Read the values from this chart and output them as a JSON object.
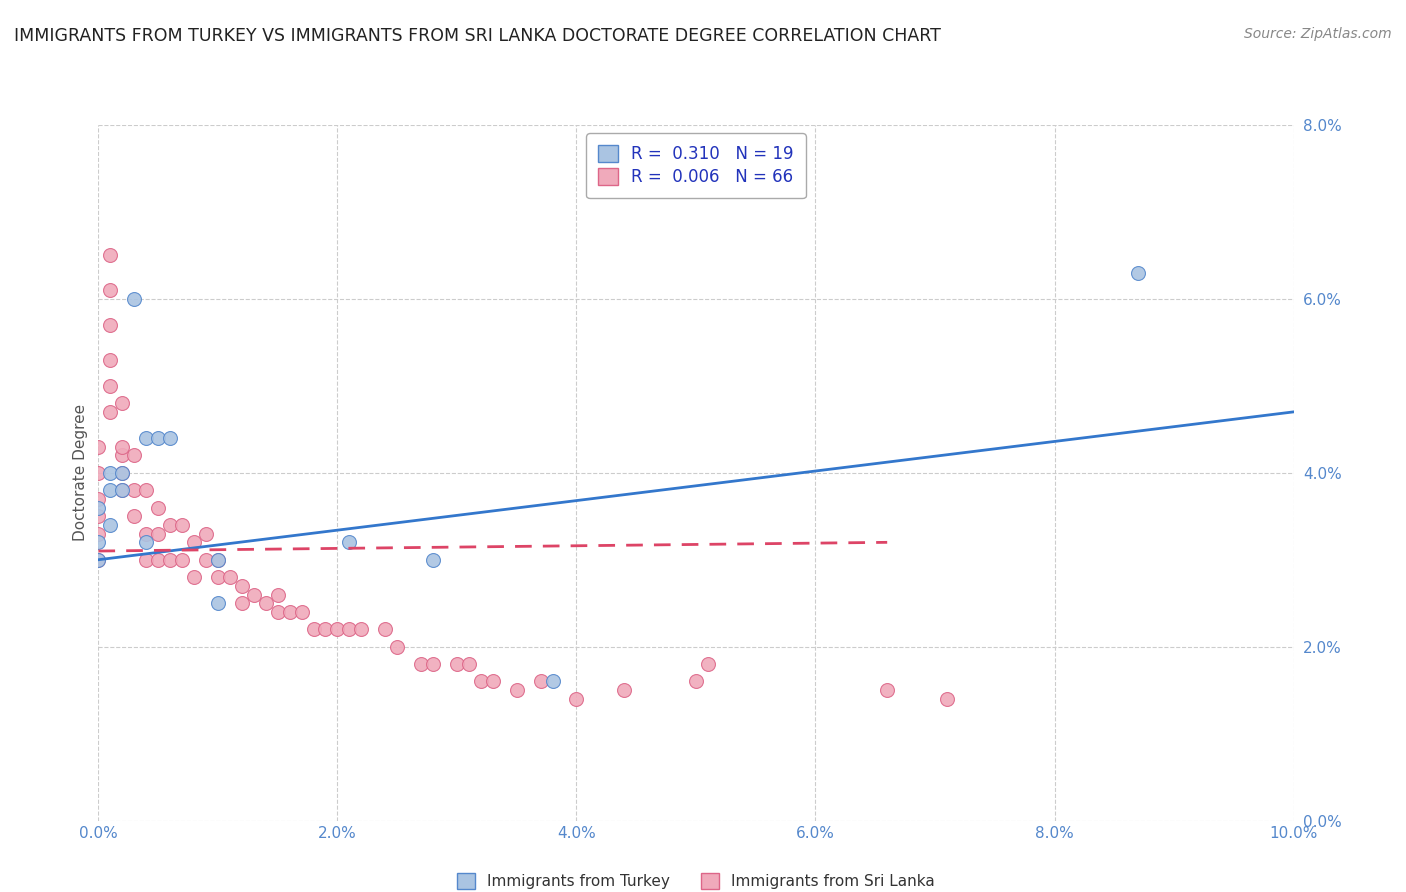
{
  "title": "IMMIGRANTS FROM TURKEY VS IMMIGRANTS FROM SRI LANKA DOCTORATE DEGREE CORRELATION CHART",
  "source": "Source: ZipAtlas.com",
  "ylabel": "Doctorate Degree",
  "xlim": [
    0.0,
    0.1
  ],
  "ylim": [
    0.0,
    0.08
  ],
  "xticks": [
    0.0,
    0.02,
    0.04,
    0.06,
    0.08,
    0.1
  ],
  "yticks": [
    0.0,
    0.02,
    0.04,
    0.06,
    0.08
  ],
  "xtick_labels": [
    "0.0%",
    "2.0%",
    "4.0%",
    "6.0%",
    "8.0%",
    "10.0%"
  ],
  "ytick_labels": [
    "0.0%",
    "2.0%",
    "4.0%",
    "6.0%",
    "8.0%"
  ],
  "turkey_color": "#aac4e2",
  "srilanka_color": "#f0aabb",
  "turkey_edge": "#5588cc",
  "srilanka_edge": "#dd6688",
  "turkey_line_color": "#3377cc",
  "srilanka_line_color": "#dd4466",
  "legend_turkey_label": "R =  0.310   N = 19",
  "legend_srilanka_label": "R =  0.006   N = 66",
  "legend_bottom_turkey": "Immigrants from Turkey",
  "legend_bottom_srilanka": "Immigrants from Sri Lanka",
  "background_color": "#ffffff",
  "grid_color": "#cccccc",
  "title_fontsize": 12.5,
  "axis_label_fontsize": 11,
  "tick_fontsize": 11,
  "marker_size": 100,
  "turkey_x": [
    0.0,
    0.0,
    0.0,
    0.001,
    0.001,
    0.001,
    0.002,
    0.002,
    0.003,
    0.004,
    0.004,
    0.005,
    0.006,
    0.01,
    0.01,
    0.021,
    0.028,
    0.038,
    0.087
  ],
  "turkey_y": [
    0.03,
    0.032,
    0.036,
    0.034,
    0.038,
    0.04,
    0.038,
    0.04,
    0.06,
    0.032,
    0.044,
    0.044,
    0.044,
    0.03,
    0.025,
    0.032,
    0.03,
    0.016,
    0.063
  ],
  "srilanka_x": [
    0.0,
    0.0,
    0.0,
    0.0,
    0.0,
    0.0,
    0.001,
    0.001,
    0.001,
    0.001,
    0.001,
    0.001,
    0.002,
    0.002,
    0.002,
    0.002,
    0.002,
    0.003,
    0.003,
    0.003,
    0.004,
    0.004,
    0.004,
    0.005,
    0.005,
    0.005,
    0.006,
    0.006,
    0.007,
    0.007,
    0.008,
    0.008,
    0.009,
    0.009,
    0.01,
    0.01,
    0.011,
    0.012,
    0.012,
    0.013,
    0.014,
    0.015,
    0.015,
    0.016,
    0.017,
    0.018,
    0.019,
    0.02,
    0.021,
    0.022,
    0.024,
    0.025,
    0.027,
    0.028,
    0.03,
    0.031,
    0.032,
    0.033,
    0.035,
    0.037,
    0.04,
    0.044,
    0.05,
    0.051,
    0.066,
    0.071
  ],
  "srilanka_y": [
    0.03,
    0.033,
    0.035,
    0.037,
    0.04,
    0.043,
    0.047,
    0.05,
    0.053,
    0.057,
    0.061,
    0.065,
    0.038,
    0.04,
    0.042,
    0.043,
    0.048,
    0.035,
    0.038,
    0.042,
    0.03,
    0.033,
    0.038,
    0.03,
    0.033,
    0.036,
    0.03,
    0.034,
    0.03,
    0.034,
    0.028,
    0.032,
    0.03,
    0.033,
    0.028,
    0.03,
    0.028,
    0.025,
    0.027,
    0.026,
    0.025,
    0.024,
    0.026,
    0.024,
    0.024,
    0.022,
    0.022,
    0.022,
    0.022,
    0.022,
    0.022,
    0.02,
    0.018,
    0.018,
    0.018,
    0.018,
    0.016,
    0.016,
    0.015,
    0.016,
    0.014,
    0.015,
    0.016,
    0.018,
    0.015,
    0.014
  ],
  "turkey_line_x": [
    0.0,
    0.1
  ],
  "turkey_line_y": [
    0.03,
    0.047
  ],
  "srilanka_line_x": [
    0.0,
    0.066
  ],
  "srilanka_line_y": [
    0.031,
    0.032
  ]
}
